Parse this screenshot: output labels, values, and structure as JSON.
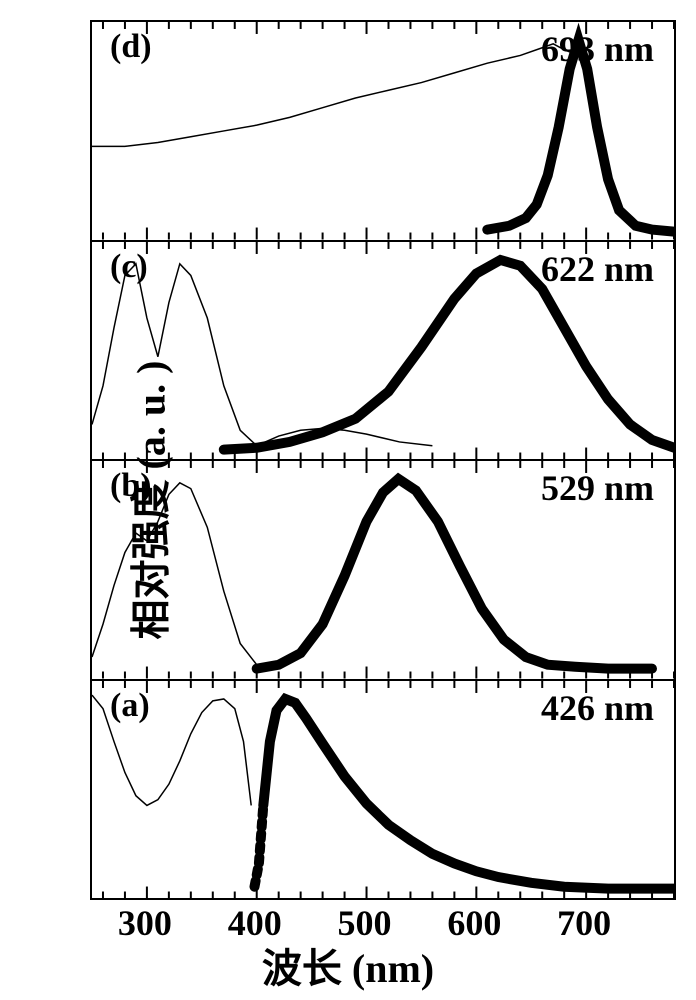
{
  "axes": {
    "x_label": "波长 (nm)",
    "y_label": "相对强度 (a. u. )",
    "xmin": 250,
    "xmax": 780,
    "x_ticks": [
      300,
      400,
      500,
      600,
      700
    ],
    "tick_fontsize": 36,
    "label_fontsize": 40
  },
  "styling": {
    "background_color": "#ffffff",
    "border_color": "#000000",
    "border_width": 2,
    "thin_line_color": "#000000",
    "thin_line_width": 1.5,
    "thick_line_color": "#000000",
    "thick_line_width": 10,
    "panel_label_fontsize": 34,
    "peak_label_fontsize": 36
  },
  "panels": [
    {
      "id": "d",
      "label_text": "(d)",
      "peak_text": "693 nm",
      "peak_nm": 693,
      "excitation_curve": [
        [
          250,
          0.45
        ],
        [
          280,
          0.45
        ],
        [
          310,
          0.47
        ],
        [
          340,
          0.5
        ],
        [
          370,
          0.53
        ],
        [
          400,
          0.56
        ],
        [
          430,
          0.6
        ],
        [
          460,
          0.65
        ],
        [
          490,
          0.7
        ],
        [
          520,
          0.74
        ],
        [
          550,
          0.78
        ],
        [
          580,
          0.83
        ],
        [
          610,
          0.88
        ],
        [
          640,
          0.92
        ],
        [
          660,
          0.96
        ],
        [
          670,
          0.98
        ],
        [
          680,
          0.95
        ],
        [
          693,
          0.92
        ]
      ],
      "emission_curve": [
        [
          610,
          0.02
        ],
        [
          630,
          0.04
        ],
        [
          645,
          0.08
        ],
        [
          655,
          0.15
        ],
        [
          665,
          0.3
        ],
        [
          675,
          0.55
        ],
        [
          685,
          0.85
        ],
        [
          693,
          1.0
        ],
        [
          701,
          0.85
        ],
        [
          710,
          0.55
        ],
        [
          720,
          0.28
        ],
        [
          730,
          0.12
        ],
        [
          745,
          0.04
        ],
        [
          760,
          0.02
        ],
        [
          780,
          0.01
        ]
      ]
    },
    {
      "id": "c",
      "label_text": "(c)",
      "peak_text": "622 nm",
      "peak_nm": 622,
      "excitation_curve": [
        [
          250,
          0.15
        ],
        [
          260,
          0.35
        ],
        [
          270,
          0.65
        ],
        [
          280,
          0.92
        ],
        [
          290,
          0.98
        ],
        [
          300,
          0.7
        ],
        [
          310,
          0.5
        ],
        [
          320,
          0.78
        ],
        [
          330,
          0.98
        ],
        [
          340,
          0.92
        ],
        [
          355,
          0.7
        ],
        [
          370,
          0.35
        ],
        [
          385,
          0.12
        ],
        [
          400,
          0.04
        ],
        [
          420,
          0.09
        ],
        [
          440,
          0.12
        ],
        [
          460,
          0.13
        ],
        [
          480,
          0.12
        ],
        [
          500,
          0.1
        ],
        [
          530,
          0.06
        ],
        [
          560,
          0.04
        ]
      ],
      "emission_curve": [
        [
          370,
          0.02
        ],
        [
          400,
          0.03
        ],
        [
          430,
          0.06
        ],
        [
          460,
          0.11
        ],
        [
          490,
          0.18
        ],
        [
          520,
          0.32
        ],
        [
          550,
          0.55
        ],
        [
          580,
          0.8
        ],
        [
          600,
          0.93
        ],
        [
          622,
          1.0
        ],
        [
          640,
          0.97
        ],
        [
          660,
          0.85
        ],
        [
          680,
          0.65
        ],
        [
          700,
          0.45
        ],
        [
          720,
          0.28
        ],
        [
          740,
          0.15
        ],
        [
          760,
          0.07
        ],
        [
          780,
          0.03
        ]
      ]
    },
    {
      "id": "b",
      "label_text": "(b)",
      "peak_text": "529 nm",
      "peak_nm": 529,
      "excitation_curve": [
        [
          250,
          0.08
        ],
        [
          260,
          0.25
        ],
        [
          270,
          0.45
        ],
        [
          280,
          0.62
        ],
        [
          290,
          0.72
        ],
        [
          300,
          0.68
        ],
        [
          310,
          0.78
        ],
        [
          320,
          0.92
        ],
        [
          330,
          0.98
        ],
        [
          340,
          0.95
        ],
        [
          355,
          0.75
        ],
        [
          370,
          0.42
        ],
        [
          385,
          0.15
        ],
        [
          400,
          0.04
        ],
        [
          415,
          0.02
        ]
      ],
      "emission_curve": [
        [
          400,
          0.02
        ],
        [
          420,
          0.04
        ],
        [
          440,
          0.1
        ],
        [
          460,
          0.25
        ],
        [
          480,
          0.5
        ],
        [
          500,
          0.78
        ],
        [
          515,
          0.93
        ],
        [
          529,
          1.0
        ],
        [
          545,
          0.94
        ],
        [
          565,
          0.78
        ],
        [
          585,
          0.55
        ],
        [
          605,
          0.33
        ],
        [
          625,
          0.17
        ],
        [
          645,
          0.08
        ],
        [
          665,
          0.04
        ],
        [
          690,
          0.03
        ],
        [
          720,
          0.02
        ],
        [
          760,
          0.02
        ]
      ]
    },
    {
      "id": "a",
      "label_text": "(a)",
      "peak_text": "426 nm",
      "peak_nm": 426,
      "excitation_curve": [
        [
          250,
          1.02
        ],
        [
          260,
          0.95
        ],
        [
          270,
          0.78
        ],
        [
          280,
          0.62
        ],
        [
          290,
          0.5
        ],
        [
          300,
          0.45
        ],
        [
          310,
          0.48
        ],
        [
          320,
          0.56
        ],
        [
          330,
          0.68
        ],
        [
          340,
          0.82
        ],
        [
          350,
          0.93
        ],
        [
          360,
          0.99
        ],
        [
          370,
          1.0
        ],
        [
          380,
          0.95
        ],
        [
          388,
          0.78
        ],
        [
          395,
          0.45
        ]
      ],
      "emission_curve": [
        [
          398,
          0.03
        ],
        [
          402,
          0.15
        ],
        [
          406,
          0.45
        ],
        [
          412,
          0.78
        ],
        [
          418,
          0.94
        ],
        [
          426,
          1.0
        ],
        [
          435,
          0.98
        ],
        [
          445,
          0.9
        ],
        [
          460,
          0.77
        ],
        [
          480,
          0.6
        ],
        [
          500,
          0.46
        ],
        [
          520,
          0.35
        ],
        [
          540,
          0.27
        ],
        [
          560,
          0.2
        ],
        [
          580,
          0.15
        ],
        [
          600,
          0.11
        ],
        [
          620,
          0.08
        ],
        [
          650,
          0.05
        ],
        [
          680,
          0.03
        ],
        [
          720,
          0.02
        ],
        [
          760,
          0.02
        ],
        [
          780,
          0.02
        ]
      ],
      "emission_dashed_until": 408
    }
  ]
}
